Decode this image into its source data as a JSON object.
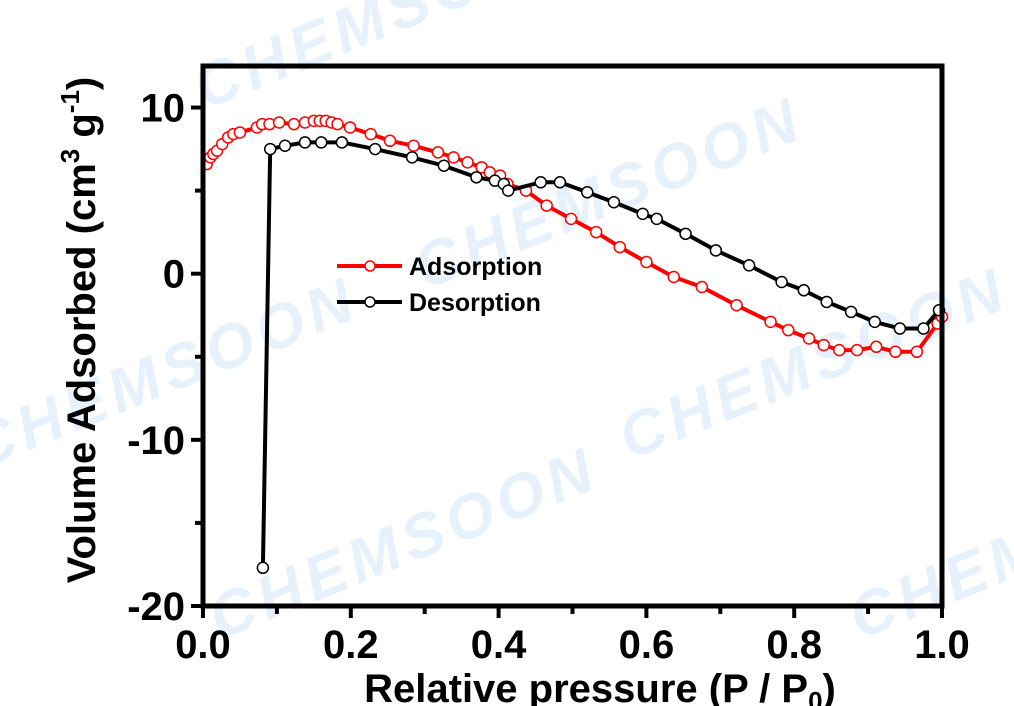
{
  "chart_data": {
    "type": "line",
    "title": "",
    "xlabel": "Relative pressure (P / P0)",
    "xlabel_main": "Relative pressure (P / P",
    "xlabel_sub": "0",
    "xlabel_end": ")",
    "ylabel": "Volume Adsorbed (cm3 g-1)",
    "ylabel_main": "Volume Adsorbed (cm",
    "ylabel_sup1": "3",
    "ylabel_mid": " g",
    "ylabel_sup2": "-1",
    "ylabel_end": ")",
    "xlim": [
      0.0,
      1.0
    ],
    "ylim": [
      -20,
      12.5
    ],
    "xticks": [
      "0.0",
      "0.2",
      "0.4",
      "0.6",
      "0.8",
      "1.0"
    ],
    "xtick_values": [
      0.0,
      0.2,
      0.4,
      0.6,
      0.8,
      1.0
    ],
    "yticks": [
      "-20",
      "-10",
      "0",
      "10"
    ],
    "ytick_values": [
      -20,
      -10,
      0,
      10
    ],
    "grid": false,
    "legend_position": "center-left",
    "series": [
      {
        "name": "Adsorption",
        "color": "#ff0000",
        "marker": "open-circle",
        "x": [
          0.005,
          0.01,
          0.014,
          0.019,
          0.026,
          0.034,
          0.041,
          0.05,
          0.073,
          0.08,
          0.09,
          0.103,
          0.123,
          0.138,
          0.15,
          0.158,
          0.166,
          0.174,
          0.182,
          0.199,
          0.227,
          0.253,
          0.285,
          0.318,
          0.339,
          0.358,
          0.377,
          0.388,
          0.402,
          0.412,
          0.437,
          0.465,
          0.498,
          0.532,
          0.564,
          0.6,
          0.637,
          0.675,
          0.722,
          0.768,
          0.792,
          0.82,
          0.84,
          0.861,
          0.885,
          0.911,
          0.937,
          0.966,
          0.994,
          1.0
        ],
        "y": [
          6.6,
          7.0,
          7.2,
          7.4,
          7.8,
          8.2,
          8.4,
          8.5,
          8.8,
          9.0,
          9.0,
          9.1,
          9.0,
          9.1,
          9.2,
          9.2,
          9.2,
          9.1,
          9.0,
          8.8,
          8.4,
          8.0,
          7.7,
          7.3,
          7.0,
          6.7,
          6.4,
          6.1,
          5.9,
          5.4,
          5.0,
          4.1,
          3.3,
          2.5,
          1.6,
          0.7,
          -0.2,
          -0.8,
          -1.9,
          -2.9,
          -3.4,
          -3.9,
          -4.3,
          -4.6,
          -4.6,
          -4.4,
          -4.7,
          -4.7,
          -3.0,
          -2.6
        ]
      },
      {
        "name": "Desorption",
        "color": "#000000",
        "marker": "open-circle",
        "x": [
          0.081,
          0.091,
          0.111,
          0.138,
          0.16,
          0.188,
          0.233,
          0.283,
          0.326,
          0.37,
          0.395,
          0.407,
          0.413,
          0.457,
          0.483,
          0.52,
          0.556,
          0.595,
          0.614,
          0.653,
          0.694,
          0.739,
          0.783,
          0.813,
          0.844,
          0.877,
          0.909,
          0.943,
          0.975,
          0.996
        ],
        "y": [
          -17.7,
          7.5,
          7.7,
          7.9,
          7.9,
          7.9,
          7.5,
          7.0,
          6.5,
          5.8,
          5.6,
          5.4,
          5.0,
          5.5,
          5.5,
          4.9,
          4.3,
          3.6,
          3.3,
          2.4,
          1.4,
          0.5,
          -0.5,
          -1.0,
          -1.7,
          -2.3,
          -2.9,
          -3.3,
          -3.3,
          -2.2
        ]
      }
    ],
    "legend": [
      {
        "label": "Adsorption",
        "color": "#ff0000"
      },
      {
        "label": "Desorption",
        "color": "#000000"
      }
    ],
    "watermark": "CHEMSOON"
  }
}
